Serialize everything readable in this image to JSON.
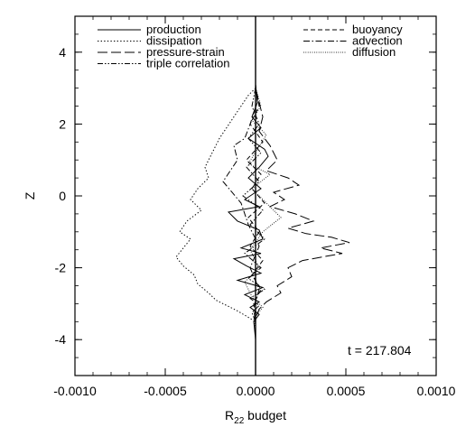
{
  "chart_data": {
    "type": "line",
    "title": "",
    "xlabel_base": "R",
    "xlabel_sub": "22",
    "xlabel_rest": " budget",
    "ylabel": "Z",
    "xlim": [
      -0.001,
      0.001
    ],
    "ylim": [
      -5,
      5
    ],
    "x_ticks": [
      -0.001,
      -0.0005,
      0.0,
      0.0005,
      0.001
    ],
    "x_tick_labels": [
      "-0.0010",
      "-0.0005",
      "0.0000",
      "0.0005",
      "0.0010"
    ],
    "y_ticks": [
      -4,
      -2,
      0,
      2,
      4
    ],
    "y_tick_labels": [
      "-4",
      "-2",
      "0",
      "2",
      "4"
    ],
    "grid": false,
    "legend_placement": "top",
    "annotation": "t = 217.804",
    "series": [
      {
        "name": "production",
        "dash": "solid",
        "x": [
          0,
          1e-05,
          -2e-05,
          3e-05,
          -4e-05,
          5e-05,
          7e-05,
          2e-05,
          -4e-05,
          3e-05,
          -6e-05,
          2e-05,
          -0.00015,
          -0.0001,
          2e-05,
          4e-05,
          -8e-05,
          3e-05,
          -0.00012,
          -5e-05,
          3e-05,
          -0.0001,
          4e-05,
          -6e-05,
          2e-05,
          -3e-05,
          2e-05,
          -1e-05,
          0
        ],
        "y": [
          3.1,
          2.6,
          2.2,
          1.9,
          1.6,
          1.3,
          1.1,
          0.8,
          0.5,
          0.2,
          -0.1,
          -0.3,
          -0.45,
          -0.7,
          -0.95,
          -1.2,
          -1.45,
          -1.6,
          -1.75,
          -1.95,
          -2.15,
          -2.35,
          -2.55,
          -2.75,
          -2.95,
          -3.1,
          -3.3,
          -3.5,
          -4.0
        ]
      },
      {
        "name": "dissipation",
        "dash": "dotted",
        "x": [
          0,
          -4e-05,
          -8e-05,
          -0.00012,
          -0.00016,
          -0.0002,
          -0.00024,
          -0.00028,
          -0.00026,
          -0.00032,
          -0.00036,
          -0.0003,
          -0.00038,
          -0.00042,
          -0.00036,
          -0.0004,
          -0.00044,
          -0.0004,
          -0.00034,
          -0.00032,
          -0.00026,
          -0.00022,
          -0.00016,
          -0.0001,
          -5e-05,
          0
        ],
        "y": [
          3.0,
          2.8,
          2.5,
          2.2,
          1.9,
          1.6,
          1.2,
          0.8,
          0.5,
          0.2,
          -0.1,
          -0.4,
          -0.7,
          -1.0,
          -1.2,
          -1.45,
          -1.7,
          -1.95,
          -2.2,
          -2.45,
          -2.7,
          -2.9,
          -3.05,
          -3.2,
          -3.35,
          -3.5
        ]
      },
      {
        "name": "pressure-strain",
        "dash": "longdash",
        "x": [
          0,
          2e-05,
          4e-05,
          2e-05,
          8e-05,
          0.00012,
          6e-05,
          0.00018,
          0.00024,
          0.0001,
          0.00016,
          8e-05,
          0.00022,
          0.00032,
          0.00018,
          0.00028,
          0.00042,
          0.00052,
          0.00036,
          0.00048,
          0.00026,
          0.00018,
          0.0002,
          0.00012,
          0.00014,
          6e-05,
          2e-05,
          0
        ],
        "y": [
          3.0,
          2.6,
          2.2,
          1.8,
          1.4,
          1.0,
          0.7,
          0.5,
          0.3,
          0.1,
          -0.1,
          -0.3,
          -0.5,
          -0.7,
          -0.9,
          -1.05,
          -1.15,
          -1.3,
          -1.45,
          -1.6,
          -1.8,
          -2.0,
          -2.25,
          -2.5,
          -2.7,
          -2.95,
          -3.15,
          -3.4
        ]
      },
      {
        "name": "triple correlation",
        "dash": "dashdotdot",
        "x": [
          0,
          -2e-05,
          2e-05,
          -4e-05,
          3e-05,
          -5e-05,
          2e-05,
          -7e-05,
          4e-05,
          -3e-05,
          5e-05,
          -6e-05,
          3e-05,
          -4e-05,
          5e-05,
          -3e-05,
          2e-05,
          -2e-05,
          0
        ],
        "y": [
          3.0,
          2.5,
          2.0,
          1.6,
          1.2,
          0.8,
          0.4,
          0.0,
          -0.4,
          -0.8,
          -1.2,
          -1.6,
          -2.0,
          -2.3,
          -2.6,
          -2.85,
          -3.05,
          -3.25,
          -3.5
        ]
      },
      {
        "name": "buoyancy",
        "dash": "dashed",
        "x": [
          0,
          2e-05,
          -3e-05,
          4e-05,
          -5e-05,
          3e-05,
          -2e-05,
          5e-05,
          -4e-05,
          2e-05,
          -3e-05,
          4e-05,
          -2e-05,
          3e-05,
          -1e-05,
          0
        ],
        "y": [
          3.0,
          2.5,
          2.0,
          1.5,
          1.0,
          0.6,
          0.2,
          -0.2,
          -0.6,
          -1.0,
          -1.4,
          -1.8,
          -2.2,
          -2.6,
          -3.0,
          -3.4
        ]
      },
      {
        "name": "advection",
        "dash": "dashdot",
        "x": [
          0,
          1e-05,
          -3e-05,
          -6e-05,
          -0.00012,
          -0.0001,
          -0.00018,
          -8e-05,
          -4e-05,
          2e-05,
          -3e-05,
          2e-05,
          -1e-05,
          0
        ],
        "y": [
          3.1,
          2.6,
          2.0,
          1.6,
          1.4,
          1.0,
          0.4,
          -0.2,
          -0.8,
          -1.4,
          -2.0,
          -2.6,
          -3.1,
          -3.6
        ]
      },
      {
        "name": "diffusion",
        "dash": "finedot",
        "x": [
          0,
          3e-05,
          -2e-05,
          6e-05,
          1e-05,
          -4e-05,
          8e-05,
          -2e-05,
          6e-05,
          0.00014,
          4e-05,
          -3e-05,
          2e-05,
          -6e-05,
          -2e-05,
          4e-05,
          -1e-05,
          0
        ],
        "y": [
          3.0,
          2.5,
          2.1,
          1.7,
          1.3,
          0.9,
          0.6,
          0.2,
          -0.2,
          -0.6,
          -1.0,
          -1.5,
          -2.0,
          -2.4,
          -2.8,
          -3.1,
          -3.4,
          -3.7
        ]
      }
    ]
  }
}
